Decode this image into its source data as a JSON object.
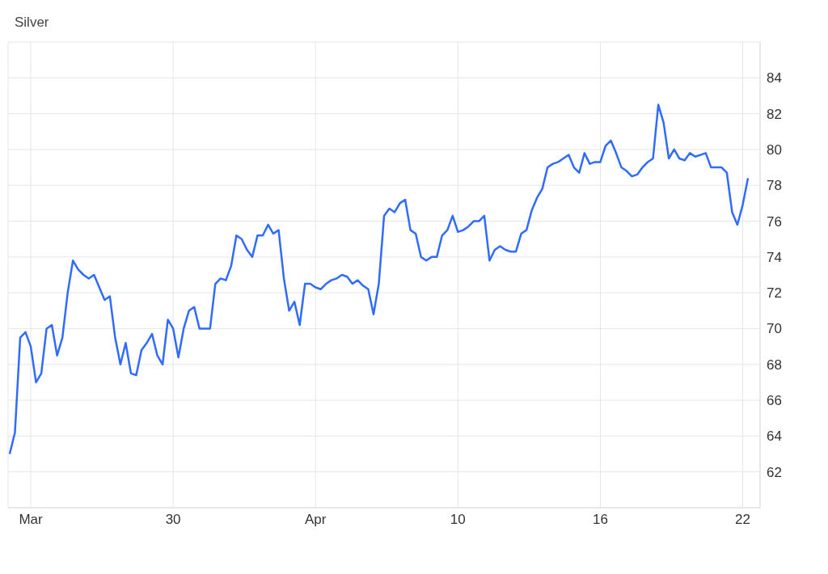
{
  "chart_data": {
    "type": "line",
    "title": "Silver",
    "categories": [
      null,
      null,
      null,
      null,
      "Mar",
      null,
      null,
      null,
      null,
      null,
      null,
      null,
      null,
      null,
      null,
      null,
      null,
      null,
      null,
      null,
      null,
      null,
      null,
      null,
      null,
      null,
      null,
      null,
      null,
      null,
      null,
      "30",
      null,
      null,
      null,
      null,
      null,
      null,
      null,
      null,
      null,
      null,
      null,
      null,
      null,
      null,
      null,
      null,
      null,
      null,
      null,
      null,
      null,
      null,
      null,
      null,
      null,
      null,
      "Apr",
      null,
      null,
      null,
      null,
      null,
      null,
      null,
      null,
      null,
      null,
      null,
      null,
      null,
      null,
      null,
      null,
      null,
      null,
      null,
      null,
      null,
      null,
      null,
      null,
      null,
      null,
      "10",
      null,
      null,
      null,
      null,
      null,
      null,
      null,
      null,
      null,
      null,
      null,
      null,
      null,
      null,
      null,
      null,
      null,
      null,
      null,
      null,
      null,
      null,
      null,
      null,
      null,
      null,
      "16",
      null,
      null,
      null,
      null,
      null,
      null,
      null,
      null,
      null,
      null,
      null,
      null,
      null,
      null,
      null,
      null,
      null,
      null,
      null,
      null,
      null,
      null,
      null,
      null,
      null,
      null,
      "22",
      null
    ],
    "series": [
      {
        "color": "#2f6bff",
        "values": [
          63.0,
          64.2,
          69.5,
          69.8,
          69.0,
          67.0,
          67.5,
          70.0,
          70.2,
          68.5,
          69.5,
          72.0,
          73.8,
          73.3,
          73.0,
          72.8,
          73.0,
          72.3,
          71.6,
          71.8,
          69.5,
          68.0,
          69.2,
          67.5,
          67.4,
          68.8,
          69.2,
          69.7,
          68.5,
          68.0,
          70.5,
          70.0,
          68.4,
          70.0,
          71.0,
          71.2,
          70.0,
          70.0,
          70.0,
          72.5,
          72.8,
          72.7,
          73.5,
          75.2,
          75.0,
          74.4,
          74.0,
          75.2,
          75.2,
          75.8,
          75.3,
          75.5,
          72.8,
          71.0,
          71.5,
          70.2,
          72.5,
          72.5,
          72.3,
          72.2,
          72.5,
          72.7,
          72.8,
          73.0,
          72.9,
          72.5,
          72.7,
          72.4,
          72.2,
          70.8,
          72.5,
          76.3,
          76.7,
          76.5,
          77.0,
          77.2,
          75.5,
          75.3,
          74.0,
          73.8,
          74.0,
          74.0,
          75.2,
          75.5,
          76.3,
          75.4,
          75.5,
          75.7,
          76.0,
          76.0,
          76.3,
          73.8,
          74.4,
          74.6,
          74.4,
          74.3,
          74.3,
          75.3,
          75.5,
          76.6,
          77.3,
          77.8,
          79.0,
          79.2,
          79.3,
          79.5,
          79.7,
          79.0,
          78.7,
          79.8,
          79.2,
          79.3,
          79.3,
          80.2,
          80.5,
          79.8,
          79.0,
          78.8,
          78.5,
          78.6,
          79.0,
          79.3,
          79.5,
          82.5,
          81.5,
          79.5,
          80.0,
          79.5,
          79.4,
          79.8,
          79.6,
          79.7,
          79.8,
          79.0,
          79.0,
          79.0,
          78.7,
          76.5,
          75.8,
          76.9,
          78.4
        ]
      }
    ],
    "ylim": [
      60,
      86
    ],
    "yticks": [
      62,
      64,
      66,
      68,
      70,
      72,
      74,
      76,
      78,
      80,
      82,
      84
    ],
    "grid": true
  }
}
